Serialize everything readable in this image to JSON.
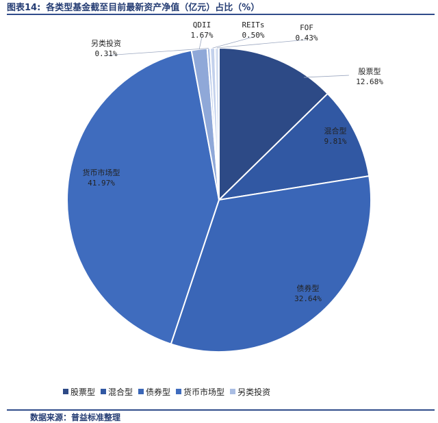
{
  "title": {
    "number": "图表14:",
    "text": "各类型基金截至目前最新资产净值（亿元）占比（%）"
  },
  "source": "数据来源：普益标准整理",
  "chart_data": {
    "type": "pie",
    "slices": [
      {
        "name": "股票型",
        "value": 12.68,
        "label": "12.68%",
        "color": "#2d4a86"
      },
      {
        "name": "混合型",
        "value": 9.81,
        "label": "9.81%",
        "color": "#3158a3"
      },
      {
        "name": "债券型",
        "value": 32.64,
        "label": "32.64%",
        "color": "#3a66b7"
      },
      {
        "name": "货币市场型",
        "value": 41.97,
        "label": "41.97%",
        "color": "#3f6cbe"
      },
      {
        "name": "QDII",
        "value": 1.67,
        "label": "1.67%",
        "color": "#8fa8d8"
      },
      {
        "name": "另类投资",
        "value": 0.31,
        "label": "0.31%",
        "color": "#a9bde3"
      },
      {
        "name": "REITs",
        "value": 0.5,
        "label": "0.50%",
        "color": "#c3d1ec"
      },
      {
        "name": "FOF",
        "value": 0.43,
        "label": "0.43%",
        "color": "#d6e0f2"
      }
    ],
    "legend_items": [
      "股票型",
      "混合型",
      "债券型",
      "货币市场型",
      "另类投资"
    ],
    "legend_placement": "bottom"
  }
}
